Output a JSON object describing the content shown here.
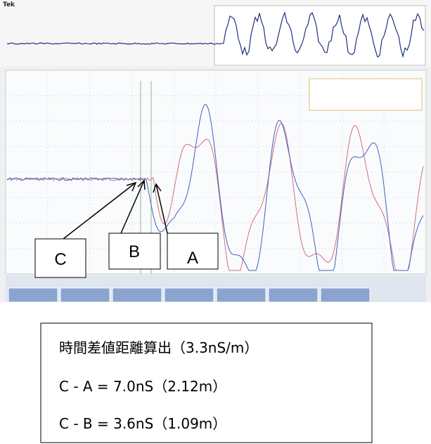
{
  "scope": {
    "brand": "Tek"
  },
  "callouts": [
    "C",
    "B",
    "A"
  ],
  "note": {
    "title": "時間差値距離算出（3.3nS/m）",
    "lines": [
      "C - A = 7.0nS（2.12m）",
      "C - B = 3.6nS（1.09m）"
    ]
  }
}
